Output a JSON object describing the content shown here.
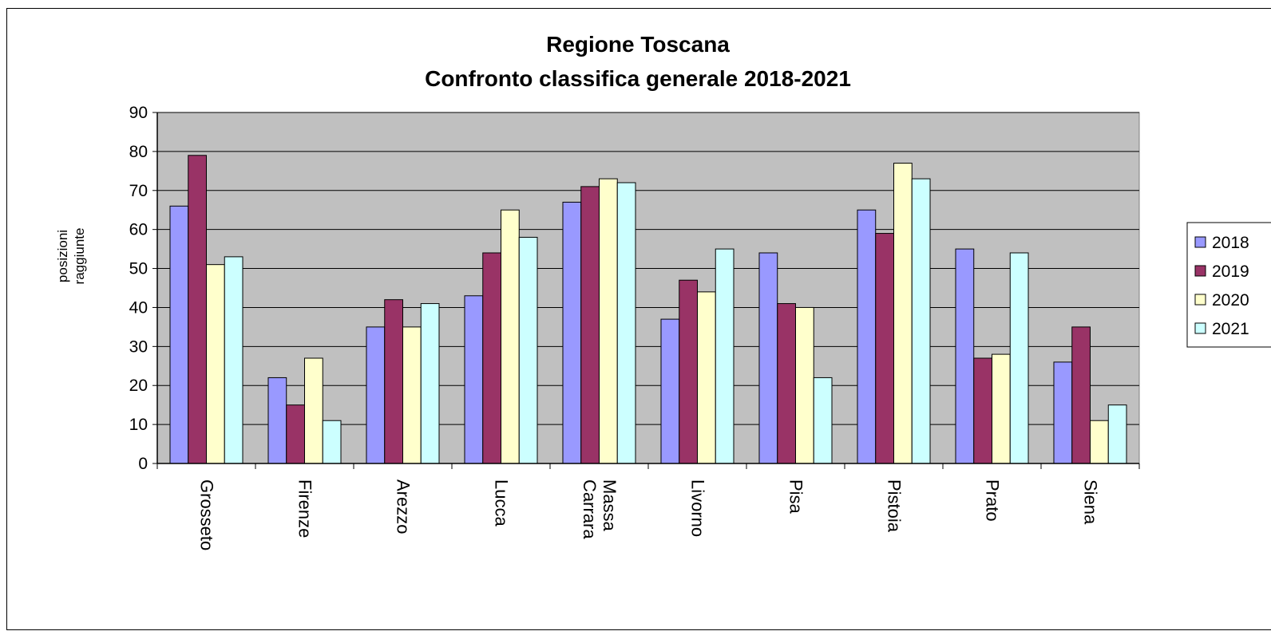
{
  "chart_data": {
    "type": "bar",
    "title": [
      "Regione Toscana",
      "Confronto classifica generale  2018-2021"
    ],
    "xlabel": "",
    "ylabel": [
      "posizioni",
      "raggiunte"
    ],
    "ylim": [
      0,
      90
    ],
    "yticks": [
      0,
      10,
      20,
      30,
      40,
      50,
      60,
      70,
      80,
      90
    ],
    "grid": true,
    "legend_position": "right",
    "plot_background": "#c0c0c0",
    "categories": [
      [
        "Grosseto"
      ],
      [
        "Firenze"
      ],
      [
        "Arezzo"
      ],
      [
        "Lucca"
      ],
      [
        "Massa",
        "Carrara"
      ],
      [
        "Livorno"
      ],
      [
        "Pisa"
      ],
      [
        "Pistoia"
      ],
      [
        "Prato"
      ],
      [
        "Siena"
      ]
    ],
    "series": [
      {
        "name": "2018",
        "color": "#9999ff",
        "values": [
          66,
          22,
          35,
          43,
          67,
          37,
          54,
          65,
          55,
          26
        ]
      },
      {
        "name": "2019",
        "color": "#993366",
        "values": [
          79,
          15,
          42,
          54,
          71,
          47,
          41,
          59,
          27,
          35
        ]
      },
      {
        "name": "2020",
        "color": "#ffffcc",
        "values": [
          51,
          27,
          35,
          65,
          73,
          44,
          40,
          77,
          28,
          11
        ]
      },
      {
        "name": "2021",
        "color": "#ccffff",
        "values": [
          53,
          11,
          41,
          58,
          72,
          55,
          22,
          73,
          54,
          15
        ]
      }
    ]
  }
}
